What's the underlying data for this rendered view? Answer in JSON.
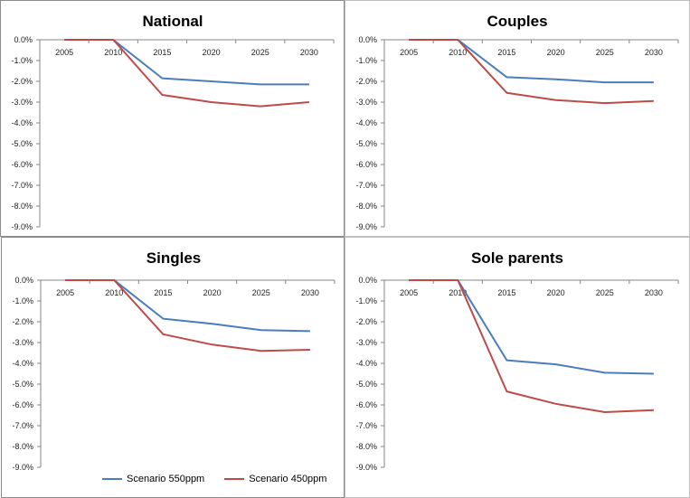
{
  "colors": {
    "series_550": "#4a7ebb",
    "series_450": "#be4b48"
  },
  "legend": [
    {
      "label": "Scenario 550ppm",
      "color": "#4a7ebb"
    },
    {
      "label": "Scenario 450ppm",
      "color": "#be4b48"
    }
  ],
  "chart_data": [
    {
      "type": "line",
      "title": "National",
      "x": [
        "2005",
        "2010",
        "2015",
        "2020",
        "2025",
        "2030"
      ],
      "y_ticks": [
        "0.0%",
        "-1.0%",
        "-2.0%",
        "-3.0%",
        "-4.0%",
        "-5.0%",
        "-6.0%",
        "-7.0%",
        "-8.0%",
        "-9.0%"
      ],
      "ylim": [
        -9.0,
        0.0
      ],
      "grid": false,
      "series": [
        {
          "name": "Scenario 550ppm",
          "values": [
            0.0,
            0.0,
            -1.85,
            -2.0,
            -2.15,
            -2.15
          ]
        },
        {
          "name": "Scenario 450ppm",
          "values": [
            0.0,
            0.0,
            -2.65,
            -3.0,
            -3.2,
            -3.0
          ]
        }
      ]
    },
    {
      "type": "line",
      "title": "Couples",
      "x": [
        "2005",
        "2010",
        "2015",
        "2020",
        "2025",
        "2030"
      ],
      "y_ticks": [
        "0.0%",
        "-1.0%",
        "-2.0%",
        "-3.0%",
        "-4.0%",
        "-5.0%",
        "-6.0%",
        "-7.0%",
        "-8.0%",
        "-9.0%"
      ],
      "ylim": [
        -9.0,
        0.0
      ],
      "grid": false,
      "series": [
        {
          "name": "Scenario 550ppm",
          "values": [
            0.0,
            0.0,
            -1.8,
            -1.9,
            -2.05,
            -2.05
          ]
        },
        {
          "name": "Scenario 450ppm",
          "values": [
            0.0,
            0.0,
            -2.55,
            -2.9,
            -3.05,
            -2.95
          ]
        }
      ]
    },
    {
      "type": "line",
      "title": "Singles",
      "x": [
        "2005",
        "2010",
        "2015",
        "2020",
        "2025",
        "2030"
      ],
      "y_ticks": [
        "0.0%",
        "-1.0%",
        "-2.0%",
        "-3.0%",
        "-4.0%",
        "-5.0%",
        "-6.0%",
        "-7.0%",
        "-8.0%",
        "-9.0%"
      ],
      "ylim": [
        -9.0,
        0.0
      ],
      "grid": false,
      "series": [
        {
          "name": "Scenario 550ppm",
          "values": [
            0.0,
            0.0,
            -1.85,
            -2.1,
            -2.4,
            -2.45
          ]
        },
        {
          "name": "Scenario 450ppm",
          "values": [
            0.0,
            0.0,
            -2.6,
            -3.1,
            -3.4,
            -3.35
          ]
        }
      ]
    },
    {
      "type": "line",
      "title": "Sole parents",
      "x": [
        "2005",
        "2010",
        "2015",
        "2020",
        "2025",
        "2030"
      ],
      "y_ticks": [
        "0.0%",
        "-1.0%",
        "-2.0%",
        "-3.0%",
        "-4.0%",
        "-5.0%",
        "-6.0%",
        "-7.0%",
        "-8.0%",
        "-9.0%"
      ],
      "ylim": [
        -9.0,
        0.0
      ],
      "grid": false,
      "series": [
        {
          "name": "Scenario 550ppm",
          "values": [
            0.0,
            0.0,
            -3.85,
            -4.05,
            -4.45,
            -4.5
          ]
        },
        {
          "name": "Scenario 450ppm",
          "values": [
            0.0,
            0.0,
            -5.35,
            -5.95,
            -6.35,
            -6.25
          ]
        }
      ]
    }
  ]
}
